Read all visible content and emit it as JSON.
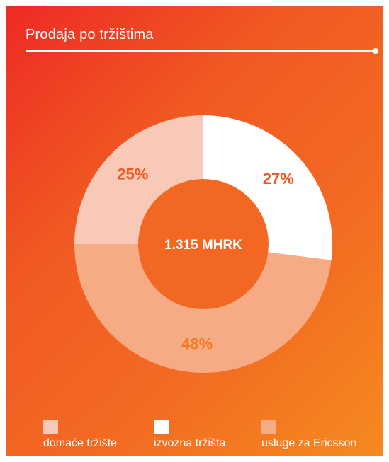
{
  "colors": {
    "domace": "#f8c9b6",
    "izvozna": "#ffffff",
    "usluge": "#f6ab84",
    "label_dark": "#f05a22",
    "label_orange": "#f47a20",
    "center": "#f26722",
    "center_text": "#ffffff"
  },
  "chart_data": {
    "type": "pie",
    "title": "Prodaja po tržištima",
    "center_label": "1.315 MHRK",
    "slices": [
      {
        "name": "izvozna tržišta",
        "value": 27,
        "label": "27%"
      },
      {
        "name": "usluge za Ericsson",
        "value": 48,
        "label": "48%"
      },
      {
        "name": "domaće tržište",
        "value": 25,
        "label": "25%"
      }
    ],
    "legend": [
      "domaće tržište",
      "izvozna tržišta",
      "usluge za Ericsson"
    ]
  }
}
